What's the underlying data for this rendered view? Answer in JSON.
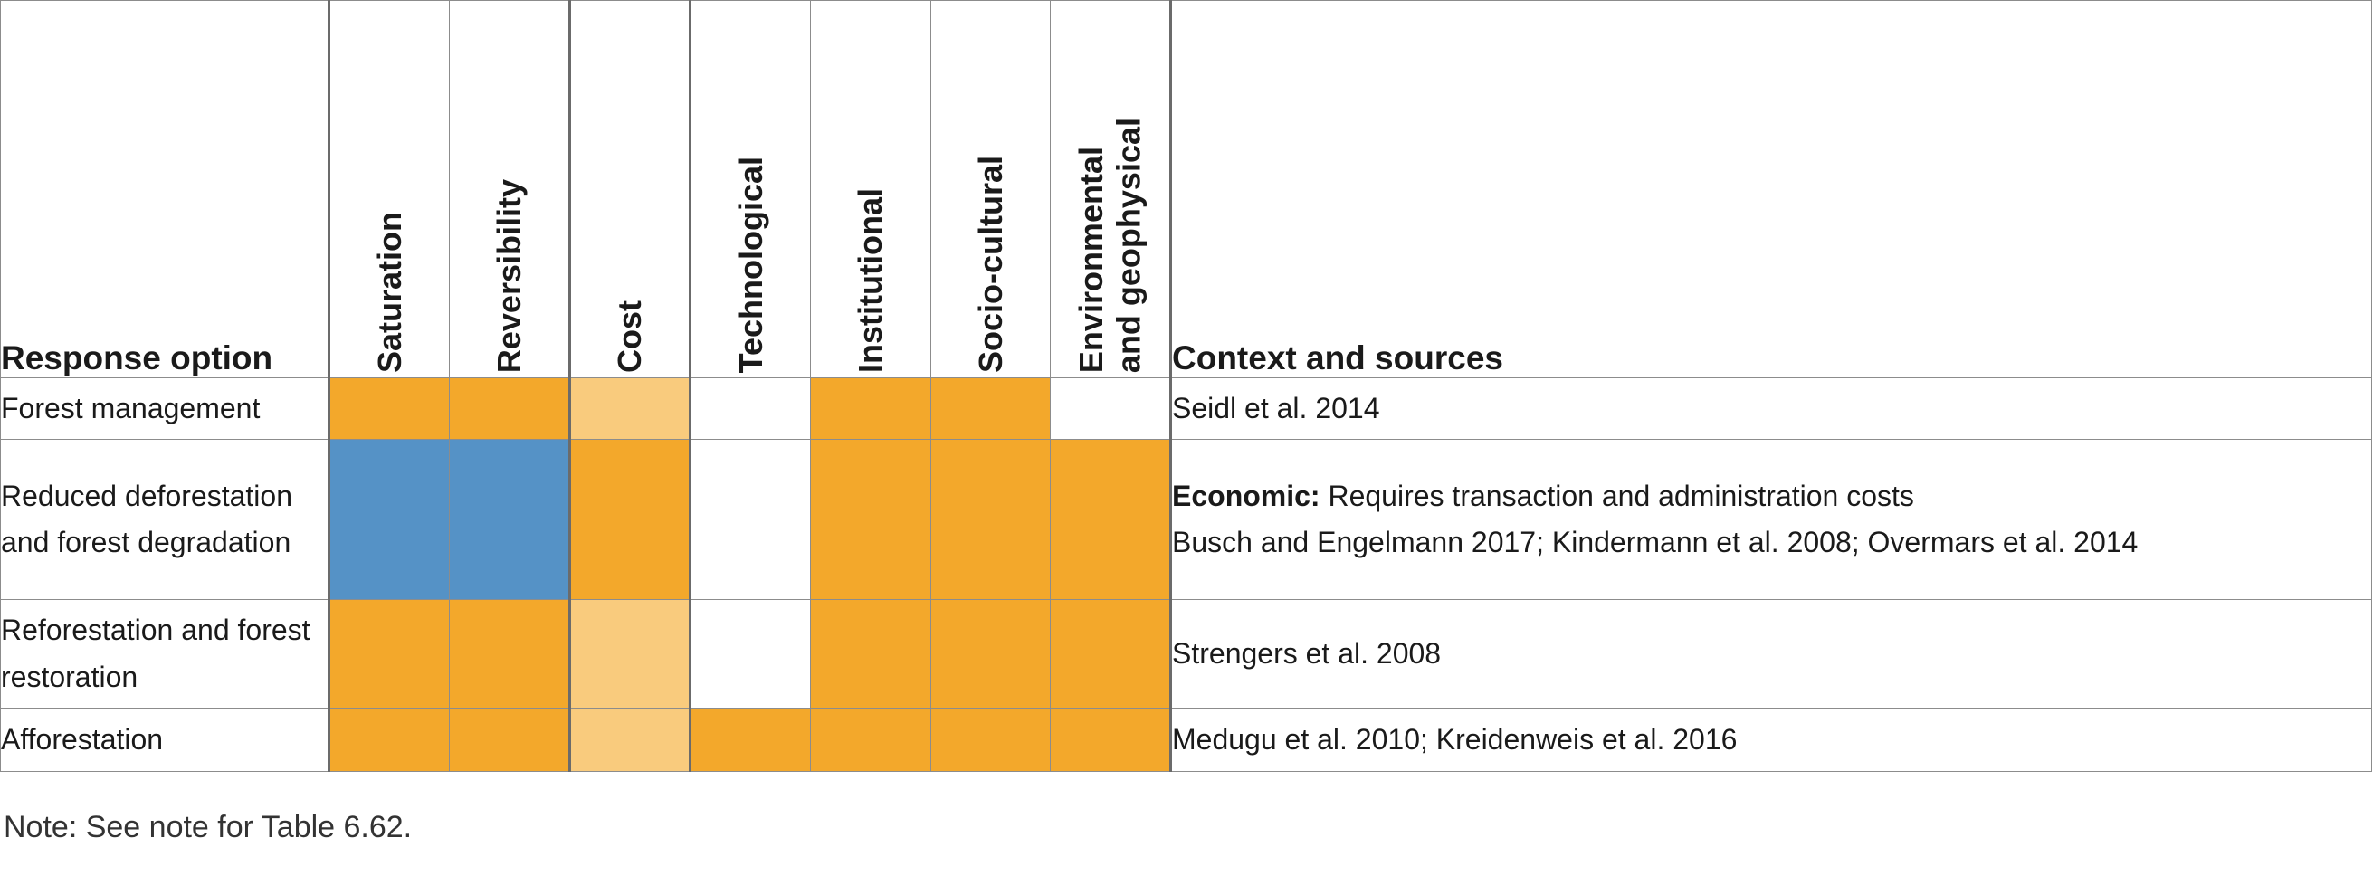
{
  "table": {
    "headers": {
      "option": "Response option",
      "context": "Context and sources",
      "columns": [
        "Saturation",
        "Reversibility",
        "Cost",
        "Technological",
        "Institutional",
        "Socio-cultural",
        "Environmental\nand geophysical"
      ]
    },
    "rows": [
      {
        "option": "Forest management",
        "cells": [
          "full",
          "full",
          "light",
          "none",
          "full",
          "full",
          "none"
        ],
        "economic_label": "",
        "economic_text": "",
        "sources": "Seidl et al. 2014"
      },
      {
        "option": "Reduced deforestation and forest degradation",
        "cells": [
          "blue",
          "blue",
          "full",
          "none",
          "full",
          "full",
          "full"
        ],
        "economic_label": "Economic:",
        "economic_text": " Requires transaction and administration costs",
        "sources": "Busch and Engelmann 2017; Kindermann et al. 2008; Overmars et al. 2014"
      },
      {
        "option": "Reforestation and forest restoration",
        "cells": [
          "full",
          "full",
          "light",
          "none",
          "full",
          "full",
          "full"
        ],
        "economic_label": "",
        "economic_text": "",
        "sources": "Strengers et al. 2008"
      },
      {
        "option": "Afforestation",
        "cells": [
          "full",
          "full",
          "light",
          "full",
          "full",
          "full",
          "full"
        ],
        "economic_label": "",
        "economic_text": "",
        "sources": "Medugu et al. 2010; Kreidenweis et al. 2016"
      }
    ]
  },
  "colors": {
    "full": "#f3a82b",
    "light": "#f9cb7d",
    "blue": "#5592c6",
    "none": "#ffffff"
  },
  "note": "Note: See note for Table 6.62."
}
